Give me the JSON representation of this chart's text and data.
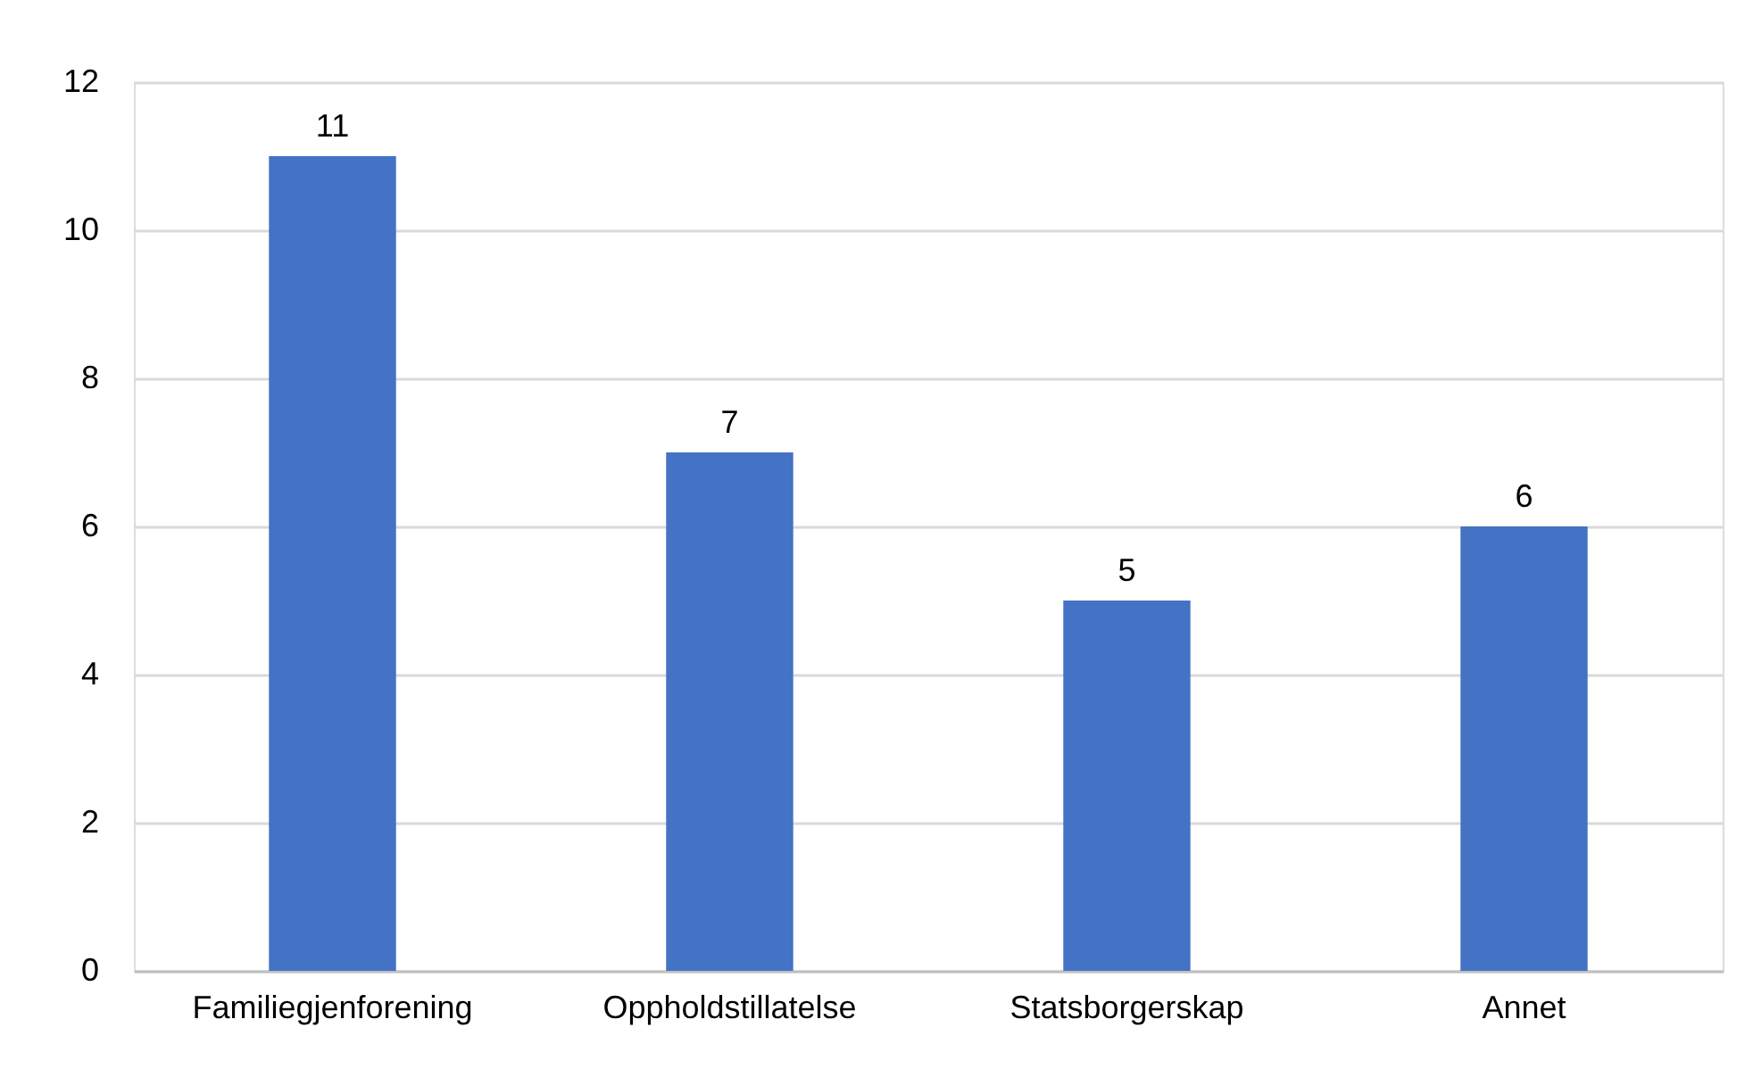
{
  "chart_data": {
    "type": "bar",
    "categories": [
      "Familiegjenforening",
      "Oppholdstillatelse",
      "Statsborgerskap",
      "Annet"
    ],
    "values": [
      11,
      7,
      5,
      6
    ],
    "color": "#4472c4",
    "ylim": [
      0,
      12
    ],
    "yticks": [
      0,
      2,
      4,
      6,
      8,
      10,
      12
    ],
    "grid": "y",
    "data_labels": true
  }
}
